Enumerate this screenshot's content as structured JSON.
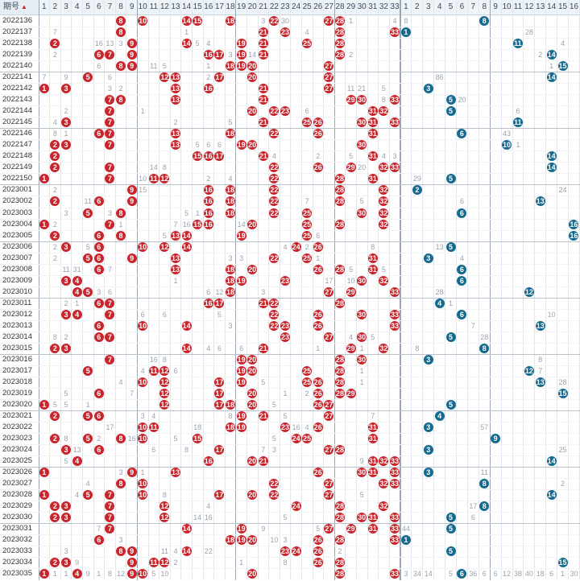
{
  "header": {
    "title": "期号",
    "sort_icon": "sort-arrow-icon",
    "red_columns": [
      "1",
      "2",
      "3",
      "4",
      "5",
      "6",
      "7",
      "8",
      "9",
      "10",
      "11",
      "12",
      "13",
      "14",
      "15",
      "16",
      "17",
      "18",
      "19",
      "20",
      "21",
      "22",
      "23",
      "24",
      "25",
      "26",
      "27",
      "28",
      "29",
      "30",
      "31",
      "32",
      "33"
    ],
    "blue_columns": [
      "1",
      "2",
      "3",
      "4",
      "5",
      "6",
      "7",
      "8",
      "9",
      "10",
      "11",
      "12",
      "13",
      "14",
      "15",
      "16"
    ]
  },
  "colors": {
    "red_ball": "#c8262c",
    "blue_ball": "#146a8f",
    "header_bg": "#eef3f8"
  },
  "rows": [
    {
      "period": "2022136",
      "red": [
        8,
        10,
        14,
        15,
        18,
        22,
        27,
        28
      ],
      "blue": 8,
      "misses": {
        "21": "3",
        "23": "30",
        "29": "1",
        "33": "4",
        "B1": "8"
      }
    },
    {
      "period": "2022137",
      "red": [
        8,
        21,
        23,
        28,
        33
      ],
      "blue": 1,
      "misses": {
        "2": "7",
        "14": "1",
        "25": "4",
        "B12": "28"
      }
    },
    {
      "period": "2022138",
      "red": [
        2,
        9,
        14,
        19,
        21,
        25,
        28
      ],
      "blue": 11,
      "misses": {
        "6": "16",
        "7": "13",
        "8": "3",
        "15": "5",
        "16": "4",
        "B15": "4"
      }
    },
    {
      "period": "2022139",
      "red": [
        6,
        7,
        9,
        16,
        17,
        19,
        21,
        28
      ],
      "blue": 14,
      "misses": {
        "2": "2",
        "18": "3",
        "20": "14",
        "29": "2",
        "B13": "2"
      }
    },
    {
      "period": "2022140",
      "red": [
        8,
        9,
        18,
        19,
        20,
        27
      ],
      "blue": 15,
      "misses": {
        "6": "6",
        "11": "11",
        "12": "5",
        "16": "1",
        "B14": "1"
      }
    },
    {
      "period": "2022141",
      "red": [
        5,
        12,
        13,
        17,
        20,
        27
      ],
      "blue": 14,
      "misses": {
        "1": "7",
        "3": "9",
        "7": "6",
        "16": "2",
        "B4": "86"
      }
    },
    {
      "period": "2022142",
      "red": [
        1,
        3,
        13,
        16,
        21,
        27
      ],
      "blue": 3,
      "misses": {
        "7": "3",
        "8": "2",
        "29": "11",
        "30": "21",
        "32": "5"
      }
    },
    {
      "period": "2022143",
      "red": [
        7,
        8,
        13,
        21,
        29,
        30,
        33
      ],
      "blue": 5,
      "misses": {
        "32": "8",
        "B6": "20"
      }
    },
    {
      "period": "2022144",
      "red": [
        7,
        20,
        22,
        23,
        31,
        32
      ],
      "blue": 5,
      "misses": {
        "3": "2",
        "10": "1",
        "25": "6",
        "B11": "6"
      }
    },
    {
      "period": "2022145",
      "red": [
        3,
        7,
        21,
        25,
        26,
        30,
        31,
        33
      ],
      "blue": 11,
      "misses": {
        "2": "4",
        "13": "2",
        "18": "5"
      }
    },
    {
      "period": "2022146",
      "red": [
        6,
        7,
        13,
        18,
        22,
        26,
        31
      ],
      "blue": 6,
      "misses": {
        "2": "8",
        "3": "1",
        "B10": "43"
      }
    },
    {
      "period": "2022147",
      "red": [
        2,
        3,
        7,
        13,
        19,
        20,
        30
      ],
      "blue": 10,
      "misses": {
        "16": "6",
        "17": "6",
        "15": "5",
        "B11": "1"
      }
    },
    {
      "period": "2022148",
      "red": [
        2,
        15,
        16,
        17,
        21,
        31
      ],
      "blue": 14,
      "misses": {
        "22": "4",
        "26": "2",
        "29": "5",
        "32": "4",
        "33": "3"
      }
    },
    {
      "period": "2022149",
      "red": [
        2,
        7,
        22,
        26,
        29,
        32,
        33
      ],
      "blue": 14,
      "misses": {
        "11": "14",
        "12": "8",
        "30": "20"
      }
    },
    {
      "period": "2022150",
      "red": [
        1,
        7,
        11,
        12,
        22,
        28,
        31
      ],
      "blue": 5,
      "misses": {
        "10": "10",
        "16": "2",
        "18": "4",
        "B2": "29"
      }
    },
    {
      "period": "2023001",
      "red": [
        9,
        16,
        18,
        22,
        28,
        32
      ],
      "blue": 2,
      "misses": {
        "2": "2",
        "10": "15",
        "B15": "24"
      }
    },
    {
      "period": "2023002",
      "red": [
        2,
        6,
        9,
        16,
        18,
        22,
        28,
        32
      ],
      "blue": 13,
      "misses": {
        "5": "11",
        "25": "7",
        "30": "5",
        "B6": "6"
      }
    },
    {
      "period": "2023003",
      "red": [
        5,
        8,
        16,
        18,
        22,
        25,
        30,
        32
      ],
      "blue": 6,
      "misses": {
        "3": "3",
        "7": "3",
        "14": "5",
        "15": "1"
      }
    },
    {
      "period": "2023004",
      "red": [
        1,
        7,
        15,
        16,
        20,
        25,
        28,
        32
      ],
      "blue": 16,
      "misses": {
        "2": "2",
        "8": "1",
        "13": "7",
        "14": "16",
        "19": "14"
      }
    },
    {
      "period": "2023005",
      "red": [
        2,
        6,
        8,
        13,
        14,
        19,
        25
      ],
      "blue": 16,
      "misses": {
        "12": "5",
        "26": "6"
      }
    },
    {
      "period": "2023006",
      "red": [
        3,
        6,
        10,
        12,
        14,
        24,
        26
      ],
      "blue": 5,
      "misses": {
        "2": "2",
        "5": "5",
        "23": "4",
        "25": "2",
        "31": "8",
        "B4": "13"
      }
    },
    {
      "period": "2023007",
      "red": [
        5,
        6,
        9,
        13,
        22,
        25,
        31
      ],
      "blue": 3,
      "misses": {
        "2": "2",
        "18": "3",
        "19": "3",
        "26": "1",
        "B6": "4"
      }
    },
    {
      "period": "2023008",
      "red": [
        6,
        13,
        18,
        20,
        26,
        28,
        31
      ],
      "blue": 6,
      "misses": {
        "3": "11",
        "4": "31",
        "7": "7",
        "29": "5",
        "32": "5"
      }
    },
    {
      "period": "2023009",
      "red": [
        3,
        4,
        18,
        19,
        23,
        30,
        32
      ],
      "blue": 6,
      "misses": {
        "13": "1",
        "27": "17",
        "29": "10"
      }
    },
    {
      "period": "2023010",
      "red": [
        4,
        5,
        18,
        27,
        29,
        33
      ],
      "blue": 12,
      "misses": {
        "6": "3",
        "7": "6",
        "16": "6",
        "17": "12",
        "21": "3",
        "B4": "28"
      }
    },
    {
      "period": "2023011",
      "red": [
        6,
        7,
        16,
        17,
        21,
        22,
        28
      ],
      "blue": 4,
      "misses": {
        "3": "2",
        "4": "1",
        "B5": "1"
      }
    },
    {
      "period": "2023012",
      "red": [
        3,
        4,
        7,
        22,
        26,
        30,
        33
      ],
      "blue": 6,
      "misses": {
        "10": "6",
        "12": "6",
        "17": "5",
        "B14": "10"
      }
    },
    {
      "period": "2023013",
      "red": [
        6,
        10,
        14,
        22,
        23,
        26,
        33
      ],
      "blue": 13,
      "misses": {
        "18": "3",
        "B7": "7"
      }
    },
    {
      "period": "2023014",
      "red": [
        6,
        7,
        23,
        27,
        30
      ],
      "blue": 5,
      "misses": {
        "2": "8",
        "3": "2",
        "29": "4",
        "31": "5",
        "B8": "28"
      }
    },
    {
      "period": "2023015",
      "red": [
        2,
        3,
        14,
        21,
        29,
        32
      ],
      "blue": 8,
      "misses": {
        "16": "4",
        "17": "6",
        "19": "6",
        "26": "1",
        "30": "1",
        "B2": "8"
      }
    },
    {
      "period": "2023016",
      "red": [
        7,
        19,
        20,
        28,
        30
      ],
      "blue": 3,
      "misses": {
        "11": "16",
        "12": "8",
        "B13": "8"
      }
    },
    {
      "period": "2023017",
      "red": [
        5,
        11,
        12,
        19,
        20,
        25,
        28
      ],
      "blue": 12,
      "misses": {
        "10": "4",
        "13": "6",
        "30": "1",
        "B13": "7"
      }
    },
    {
      "period": "2023018",
      "red": [
        10,
        12,
        17,
        19,
        25,
        26,
        28
      ],
      "blue": 13,
      "misses": {
        "8": "4",
        "21": "5",
        "30": "1",
        "B15": "28"
      }
    },
    {
      "period": "2023019",
      "red": [
        6,
        12,
        17,
        20,
        26,
        28,
        29
      ],
      "blue": 15,
      "misses": {
        "3": "5",
        "9": "7",
        "23": "1",
        "25": "2"
      }
    },
    {
      "period": "2023020",
      "red": [
        1,
        12,
        17,
        18,
        20,
        26,
        27
      ],
      "blue": 5,
      "misses": {
        "2": "5",
        "3": "5",
        "5": "1",
        "22": "5"
      }
    },
    {
      "period": "2023021",
      "red": [
        2,
        5,
        6,
        19,
        21,
        27
      ],
      "blue": 4,
      "misses": {
        "10": "3",
        "11": "4",
        "18": "8",
        "23": "5",
        "31": "7"
      }
    },
    {
      "period": "2023022",
      "red": [
        10,
        11,
        18,
        19,
        23,
        26,
        31
      ],
      "blue": 3,
      "misses": {
        "7": "17",
        "15": "18",
        "24": "16",
        "25": "4",
        "B8": "57"
      }
    },
    {
      "period": "2023023",
      "red": [
        2,
        5,
        8,
        10,
        15,
        24,
        25,
        31
      ],
      "blue": 9,
      "misses": {
        "3": "8",
        "6": "2",
        "9": "16",
        "13": "5",
        "22": "5"
      }
    },
    {
      "period": "2023024",
      "red": [
        3,
        6,
        17,
        27,
        28
      ],
      "blue": 3,
      "misses": {
        "4": "13",
        "11": "6",
        "14": "8",
        "21": "7",
        "22": "3",
        "B15": "25"
      }
    },
    {
      "period": "2023025",
      "red": [
        4,
        16,
        20,
        21,
        31,
        32,
        33
      ],
      "blue": 14,
      "misses": {
        "3": "5",
        "30": "9"
      }
    },
    {
      "period": "2023026",
      "red": [
        1,
        9,
        13,
        26,
        30,
        31,
        33
      ],
      "blue": 3,
      "misses": {
        "8": "3",
        "10": "1",
        "B8": "11"
      }
    },
    {
      "period": "2023027",
      "red": [
        8,
        10,
        22,
        27,
        32,
        33
      ],
      "blue": 8,
      "misses": {
        "5": "4",
        "B15": "2"
      }
    },
    {
      "period": "2023028",
      "red": [
        1,
        5,
        7,
        10,
        17,
        20,
        22,
        27
      ],
      "blue": 14,
      "misses": {
        "4": "4",
        "12": "8",
        "30": "5"
      }
    },
    {
      "period": "2023029",
      "red": [
        2,
        3,
        7,
        12,
        24,
        28,
        32
      ],
      "blue": 8,
      "misses": {
        "16": "4",
        "B7": "17"
      }
    },
    {
      "period": "2023030",
      "red": [
        2,
        3,
        7,
        12,
        28,
        30,
        31,
        33
      ],
      "blue": 5,
      "misses": {
        "15": "14",
        "16": "16",
        "23": "5",
        "B7": "6"
      }
    },
    {
      "period": "2023031",
      "red": [
        7,
        14,
        19,
        27,
        29,
        31,
        33
      ],
      "blue": 5,
      "misses": {
        "6": "7",
        "21": "9",
        "26": "5",
        "B1": "44"
      }
    },
    {
      "period": "2023032",
      "red": [
        6,
        18,
        19,
        20,
        26,
        28,
        33
      ],
      "blue": 1,
      "misses": {
        "8": "3",
        "22": "10",
        "23": "3"
      }
    },
    {
      "period": "2023033",
      "red": [
        8,
        9,
        14,
        23,
        24,
        26
      ],
      "blue": 5,
      "misses": {
        "3": "3",
        "12": "11",
        "13": "4",
        "16": "22",
        "28": "2"
      }
    },
    {
      "period": "2023034",
      "red": [
        2,
        3,
        9,
        11,
        12,
        26,
        28
      ],
      "blue": 15,
      "misses": {
        "4": "9",
        "13": "2",
        "19": "1",
        "23": "8"
      }
    },
    {
      "period": "2023035",
      "red": [
        1,
        4,
        9,
        10,
        20,
        28,
        33
      ],
      "blue": 6,
      "misses": {
        "2": "1",
        "3": "1",
        "5": "9",
        "6": "1",
        "7": "8",
        "8": "12",
        "11": "5",
        "12": "10",
        "B1": "3",
        "B2": "34",
        "B3": "14",
        "B5": "5",
        "B7": "36",
        "B8": "6",
        "B9": "6",
        "B10": "12",
        "B11": "38",
        "B12": "40",
        "B13": "18",
        "B14": "6",
        "B15": "1",
        "B16": "30"
      }
    }
  ]
}
